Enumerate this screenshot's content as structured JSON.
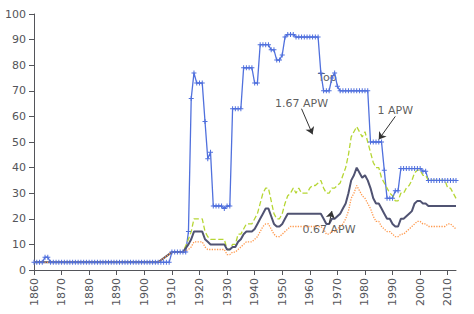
{
  "chart_data": {
    "type": "line",
    "xlim": [
      1860,
      2013
    ],
    "ylim": [
      0,
      100
    ],
    "xticks": [
      1860,
      1870,
      1880,
      1890,
      1900,
      1910,
      1920,
      1930,
      1940,
      1950,
      1960,
      1970,
      1980,
      1990,
      2000,
      2010
    ],
    "yticks": [
      0,
      10,
      20,
      30,
      40,
      50,
      60,
      70,
      80,
      90,
      100
    ],
    "grid": false,
    "series": [
      {
        "line_style": "solid",
        "marker": "plus",
        "x": [
          1860,
          1861,
          1862,
          1863,
          1864,
          1865,
          1866,
          1867,
          1868,
          1869,
          1870,
          1871,
          1872,
          1873,
          1874,
          1875,
          1876,
          1877,
          1878,
          1879,
          1880,
          1881,
          1882,
          1883,
          1884,
          1885,
          1886,
          1887,
          1888,
          1889,
          1890,
          1891,
          1892,
          1893,
          1894,
          1895,
          1896,
          1897,
          1898,
          1899,
          1900,
          1901,
          1902,
          1903,
          1904,
          1905,
          1906,
          1907,
          1908,
          1909,
          1910,
          1911,
          1912,
          1913,
          1914,
          1915,
          1916,
          1917,
          1918,
          1919,
          1920,
          1921,
          1922,
          1923,
          1924,
          1925,
          1926,
          1927,
          1928,
          1929,
          1930,
          1931,
          1932,
          1933,
          1934,
          1935,
          1936,
          1937,
          1938,
          1939,
          1940,
          1941,
          1942,
          1943,
          1944,
          1945,
          1946,
          1947,
          1948,
          1949,
          1950,
          1951,
          1952,
          1953,
          1954,
          1955,
          1956,
          1957,
          1958,
          1959,
          1960,
          1961,
          1962,
          1963,
          1964,
          1965,
          1966,
          1967,
          1968,
          1969,
          1970,
          1971,
          1972,
          1973,
          1974,
          1975,
          1976,
          1977,
          1978,
          1979,
          1980,
          1981,
          1982,
          1983,
          1984,
          1985,
          1986,
          1987,
          1988,
          1989,
          1990,
          1991,
          1992,
          1993,
          1994,
          1995,
          1996,
          1997,
          1998,
          1999,
          2000,
          2001,
          2002,
          2003,
          2004,
          2005,
          2006,
          2007,
          2008,
          2009,
          2010,
          2011,
          2012,
          2013
        ],
        "values": [
          3,
          3,
          3,
          3,
          5,
          5,
          3,
          3,
          3,
          3,
          3,
          3,
          3,
          3,
          3,
          3,
          3,
          3,
          3,
          3,
          3,
          3,
          3,
          3,
          3,
          3,
          3,
          3,
          3,
          3,
          3,
          3,
          3,
          3,
          3,
          3,
          3,
          3,
          3,
          3,
          3,
          3,
          3,
          3,
          3,
          3,
          3,
          3,
          3,
          3,
          7,
          7,
          7,
          7,
          7,
          7,
          15,
          67,
          77,
          73,
          73,
          73,
          58,
          43.5,
          46,
          25,
          25,
          25,
          25,
          24,
          25,
          25,
          63,
          63,
          63,
          63,
          79,
          79,
          79,
          79,
          73,
          73,
          88,
          88,
          88,
          88,
          86,
          86,
          82,
          82,
          84,
          91,
          92,
          92,
          92,
          91,
          91,
          91,
          91,
          91,
          91,
          91,
          91,
          91,
          77,
          70,
          70,
          70,
          75,
          77,
          71.75,
          70,
          70,
          70,
          70,
          70,
          70,
          70,
          70,
          70,
          70,
          70,
          50,
          50,
          50,
          50,
          50,
          39,
          28,
          28,
          28,
          31,
          31,
          39.6,
          39.6,
          39.6,
          39.6,
          39.6,
          39.6,
          39.6,
          39.6,
          38.6,
          38.6,
          35,
          35,
          35,
          35,
          35,
          35,
          35,
          35,
          35,
          35,
          35
        ]
      },
      {
        "line_style": "dashed",
        "x": [
          1860,
          1862,
          1870,
          1880,
          1890,
          1900,
          1905,
          1910,
          1913,
          1914,
          1916,
          1917,
          1918,
          1919,
          1920,
          1921,
          1922,
          1923,
          1924,
          1925,
          1926,
          1927,
          1928,
          1929,
          1930,
          1931,
          1932,
          1933,
          1934,
          1935,
          1936,
          1937,
          1938,
          1939,
          1940,
          1941,
          1942,
          1943,
          1944,
          1945,
          1946,
          1947,
          1948,
          1949,
          1950,
          1951,
          1952,
          1953,
          1954,
          1955,
          1956,
          1957,
          1958,
          1959,
          1960,
          1961,
          1962,
          1963,
          1964,
          1965,
          1966,
          1967,
          1968,
          1969,
          1970,
          1971,
          1972,
          1973,
          1974,
          1975,
          1976,
          1977,
          1978,
          1979,
          1980,
          1981,
          1982,
          1983,
          1984,
          1985,
          1986,
          1987,
          1988,
          1989,
          1990,
          1991,
          1992,
          1993,
          1994,
          1995,
          1996,
          1997,
          1998,
          1999,
          2000,
          2001,
          2002,
          2003,
          2004,
          2005,
          2006,
          2007,
          2008,
          2009,
          2010,
          2011,
          2012,
          2013
        ],
        "values": [
          3,
          3,
          3,
          3,
          3,
          3,
          3,
          7,
          7,
          7,
          12,
          15,
          20,
          20,
          20,
          20,
          15,
          13,
          12,
          12,
          12,
          12,
          12,
          12,
          8,
          8,
          10,
          10,
          14,
          14,
          16,
          18,
          18,
          18,
          20,
          22,
          26,
          30,
          32,
          32,
          27,
          22,
          20,
          20,
          22,
          26,
          29,
          30,
          32,
          30,
          32,
          30,
          30,
          30,
          32,
          33,
          33,
          34,
          35,
          32,
          30,
          30,
          32,
          32,
          33,
          34,
          37,
          40,
          45,
          52,
          54,
          56,
          54,
          52,
          54,
          50,
          46,
          42,
          40,
          40,
          36,
          34,
          32,
          30,
          29,
          27,
          27,
          30,
          30,
          32,
          33,
          35,
          38,
          39,
          39,
          37,
          37,
          35,
          35,
          35,
          35,
          35,
          35,
          35,
          32,
          32,
          30,
          28
        ]
      },
      {
        "line_style": "solid",
        "x": [
          1860,
          1862,
          1870,
          1880,
          1890,
          1900,
          1905,
          1910,
          1913,
          1914,
          1916,
          1917,
          1918,
          1919,
          1920,
          1921,
          1922,
          1923,
          1924,
          1925,
          1926,
          1927,
          1928,
          1929,
          1930,
          1931,
          1932,
          1933,
          1934,
          1935,
          1936,
          1937,
          1938,
          1939,
          1940,
          1941,
          1942,
          1943,
          1944,
          1945,
          1946,
          1947,
          1948,
          1949,
          1950,
          1951,
          1952,
          1953,
          1954,
          1955,
          1956,
          1957,
          1958,
          1959,
          1960,
          1961,
          1962,
          1963,
          1964,
          1965,
          1966,
          1967,
          1968,
          1969,
          1970,
          1971,
          1972,
          1973,
          1974,
          1975,
          1976,
          1977,
          1978,
          1979,
          1980,
          1981,
          1982,
          1983,
          1984,
          1985,
          1986,
          1987,
          1988,
          1989,
          1990,
          1991,
          1992,
          1993,
          1994,
          1995,
          1996,
          1997,
          1998,
          1999,
          2000,
          2001,
          2002,
          2003,
          2004,
          2005,
          2006,
          2007,
          2008,
          2009,
          2010,
          2011,
          2012,
          2013
        ],
        "values": [
          3,
          3,
          3,
          3,
          3,
          3,
          3,
          7,
          7,
          7,
          10,
          12,
          15,
          15,
          15,
          15,
          12,
          11,
          10,
          10,
          10,
          10,
          10,
          10,
          8,
          8,
          9,
          9,
          11,
          12,
          14,
          15,
          15,
          15,
          16,
          18,
          20,
          22,
          24,
          24,
          21,
          18,
          17,
          17,
          18,
          20,
          22,
          22,
          22,
          22,
          22,
          22,
          22,
          22,
          22,
          22,
          22,
          22,
          22,
          20,
          18,
          18,
          20,
          20,
          21,
          22,
          24,
          26,
          30,
          35,
          37,
          40,
          38,
          36,
          37,
          35,
          32,
          28,
          26,
          26,
          24,
          22,
          20,
          20,
          18,
          17,
          17,
          20,
          20,
          21,
          22,
          23,
          26,
          27,
          27,
          26,
          26,
          25,
          25,
          25,
          25,
          25,
          25,
          25,
          25,
          25,
          25,
          25
        ]
      },
      {
        "line_style": "dotted",
        "x": [
          1860,
          1862,
          1870,
          1880,
          1890,
          1900,
          1905,
          1910,
          1913,
          1914,
          1916,
          1917,
          1918,
          1919,
          1920,
          1921,
          1922,
          1923,
          1924,
          1925,
          1926,
          1927,
          1928,
          1929,
          1930,
          1931,
          1932,
          1933,
          1934,
          1935,
          1936,
          1937,
          1938,
          1939,
          1940,
          1941,
          1942,
          1943,
          1944,
          1945,
          1946,
          1947,
          1948,
          1949,
          1950,
          1951,
          1952,
          1953,
          1954,
          1955,
          1956,
          1957,
          1958,
          1959,
          1960,
          1961,
          1962,
          1963,
          1964,
          1965,
          1966,
          1967,
          1968,
          1969,
          1970,
          1971,
          1972,
          1973,
          1974,
          1975,
          1976,
          1977,
          1978,
          1979,
          1980,
          1981,
          1982,
          1983,
          1984,
          1985,
          1986,
          1987,
          1988,
          1989,
          1990,
          1991,
          1992,
          1993,
          1994,
          1995,
          1996,
          1997,
          1998,
          1999,
          2000,
          2001,
          2002,
          2003,
          2004,
          2005,
          2006,
          2007,
          2008,
          2009,
          2010,
          2011,
          2012,
          2013
        ],
        "values": [
          3,
          3,
          3,
          3,
          3,
          3,
          3,
          7,
          7,
          7,
          8,
          9,
          11,
          11,
          11,
          11,
          9,
          8,
          8,
          8,
          8,
          8,
          8,
          8,
          6,
          6,
          7,
          7,
          8,
          9,
          10,
          11,
          11,
          11,
          12,
          13,
          15,
          17,
          18,
          18,
          16,
          14,
          13,
          13,
          14,
          15,
          16,
          17,
          17,
          17,
          17,
          17,
          17,
          17,
          17,
          17,
          17,
          17,
          17,
          16,
          14,
          14,
          15,
          15,
          16,
          17,
          18,
          20,
          23,
          28,
          30,
          33,
          31,
          29,
          28,
          26,
          24,
          21,
          19,
          19,
          17,
          16,
          15,
          15,
          14,
          13,
          13,
          14,
          14,
          15,
          16,
          17,
          18,
          19,
          19,
          18,
          18,
          17,
          17,
          17,
          17,
          17,
          17,
          17,
          18,
          18,
          17,
          16
        ]
      }
    ],
    "annotations": [
      {
        "text": "Top",
        "x": 1963,
        "y": 73
      },
      {
        "text": "1.67 APW",
        "x": 1957,
        "y": 63,
        "arrow_to": [
          1961,
          53
        ]
      },
      {
        "text": "1 APW",
        "x": 1991,
        "y": 60,
        "arrow_to": [
          1985,
          51
        ]
      },
      {
        "text": "0.67 APW",
        "x": 1967,
        "y": 18,
        "arrow_to": [
          1968,
          23
        ]
      }
    ]
  }
}
